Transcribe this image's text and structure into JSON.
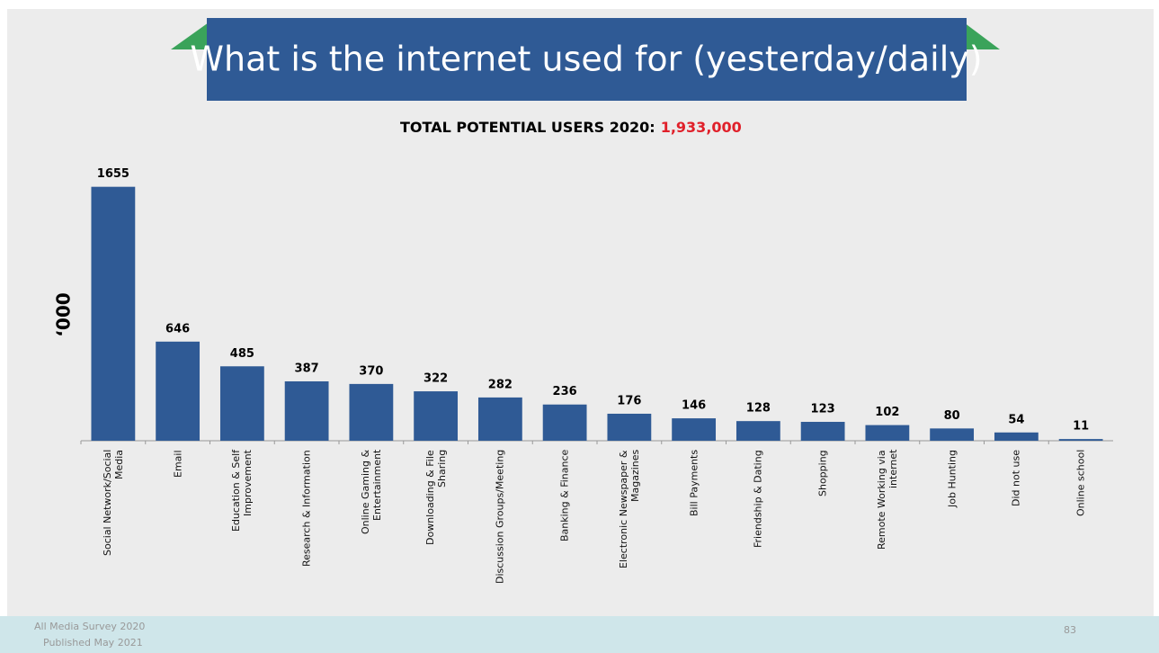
{
  "chart_data": {
    "type": "bar",
    "title": "What is the internet used for (yesterday/daily)",
    "subtitle": "TOTAL POTENTIAL USERS 2020:",
    "subtitle_value": "1,933,000",
    "y_label": "‘000",
    "categories": [
      "Social Network/Social Media",
      "Email",
      "Education & Self Improvement",
      "Research & Information",
      "Online Gaming & Entertainment",
      "Downloading & File Sharing",
      "Discussion Groups/Meeting",
      "Banking & Finance",
      "Electronic Newspaper & Magazines",
      "Bill Payments",
      "Friendship & Dating",
      "Shopping",
      "Remote Working via internet",
      "Job Hunting",
      "Did not use",
      "Online school"
    ],
    "values": [
      1655,
      646,
      485,
      387,
      370,
      322,
      282,
      236,
      176,
      146,
      128,
      123,
      102,
      80,
      54,
      11
    ],
    "color": "#2f5a95",
    "ylim": [
      0,
      1700
    ]
  },
  "footer": {
    "source": "All Media Survey 2020",
    "published": "Published May 2021",
    "page": "83"
  }
}
